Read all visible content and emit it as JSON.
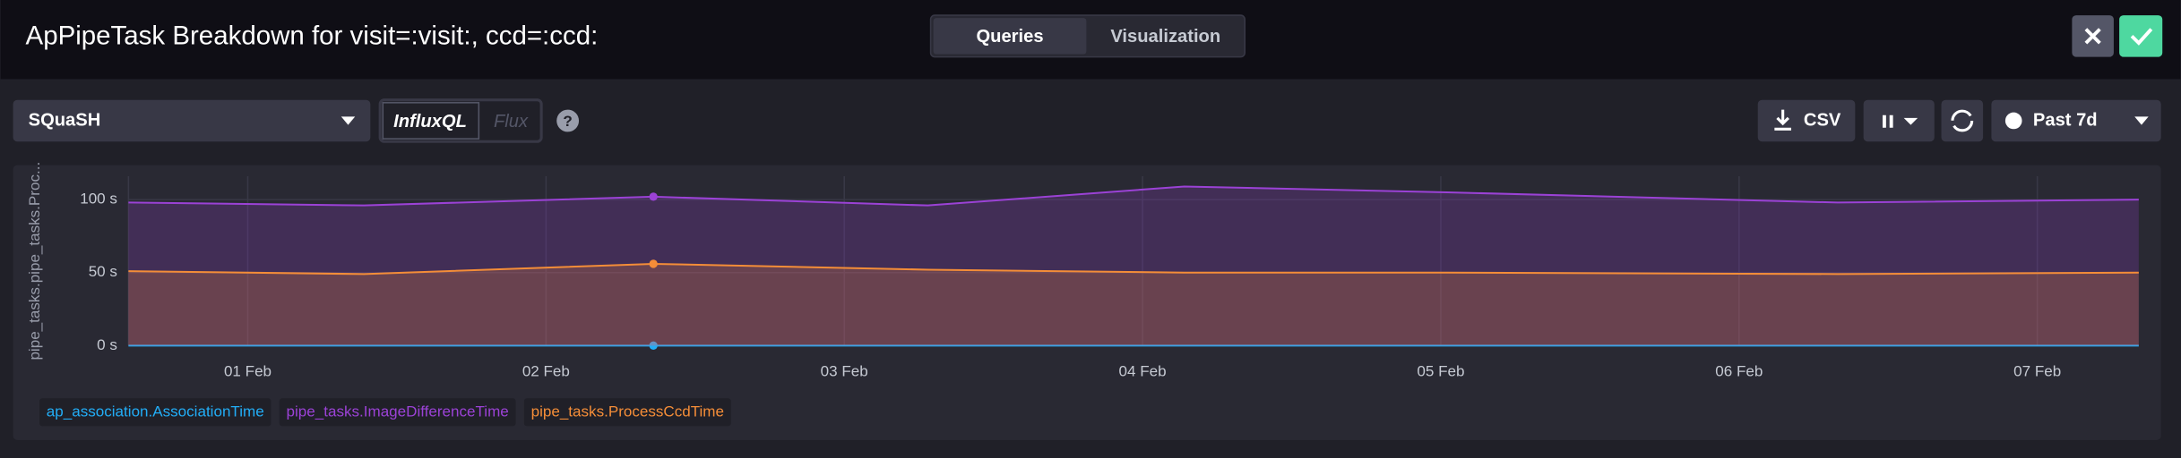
{
  "header": {
    "title": "ApPipeTask Breakdown for visit=:visit:, ccd=:ccd:",
    "tabs": [
      "Queries",
      "Visualization"
    ]
  },
  "toolbar": {
    "database": "SQuaSH",
    "languages": [
      "InfluxQL",
      "Flux"
    ],
    "csv": "CSV",
    "time_range": "Past 7d"
  },
  "chart_data": {
    "type": "line",
    "y_label": "pipe_tasks.pipe_tasks.Proc...",
    "x": [
      0.6,
      1.39,
      2.36,
      3.28,
      4.14,
      5.02,
      6.33,
      7.34
    ],
    "xlim": [
      0.6,
      7.34
    ],
    "xticks": [
      {
        "value": 1,
        "label": "01 Feb"
      },
      {
        "value": 2,
        "label": "02 Feb"
      },
      {
        "value": 3,
        "label": "03 Feb"
      },
      {
        "value": 4,
        "label": "04 Feb"
      },
      {
        "value": 5,
        "label": "05 Feb"
      },
      {
        "value": 6,
        "label": "06 Feb"
      },
      {
        "value": 7,
        "label": "07 Feb"
      }
    ],
    "ylim": [
      0,
      116
    ],
    "yticks": [
      {
        "value": 0,
        "label": "0 s"
      },
      {
        "value": 50,
        "label": "50 s"
      },
      {
        "value": 100,
        "label": "100 s"
      }
    ],
    "grid": true,
    "series": [
      {
        "name": "ap_association.AssociationTime",
        "color": "#22adf6",
        "values": [
          0,
          0,
          0,
          0,
          0,
          0,
          0,
          0
        ]
      },
      {
        "name": "pipe_tasks.ImageDifferenceTime",
        "color": "#9b42d6",
        "values": [
          98,
          96,
          102,
          96,
          109,
          105,
          98,
          100
        ]
      },
      {
        "name": "pipe_tasks.ProcessCcdTime",
        "color": "#f48d38",
        "values": [
          51,
          49,
          56,
          52,
          50,
          50,
          49,
          50
        ]
      }
    ]
  }
}
